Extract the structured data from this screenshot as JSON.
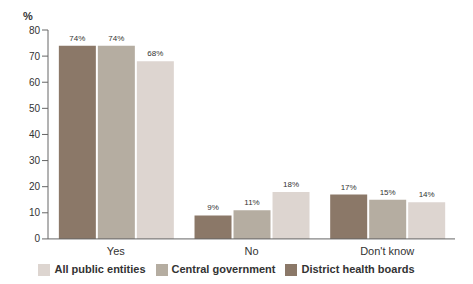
{
  "chart_data": {
    "type": "bar",
    "y_label": "%",
    "categories": [
      "Yes",
      "No",
      "Don't know"
    ],
    "series": [
      {
        "name": "District health boards",
        "color": "#8b7868",
        "values": [
          74,
          9,
          17
        ],
        "value_labels": [
          "74%",
          "9%",
          "17%"
        ]
      },
      {
        "name": "Central government",
        "color": "#b5ada1",
        "values": [
          74,
          11,
          15
        ],
        "value_labels": [
          "74%",
          "11%",
          "15%"
        ]
      },
      {
        "name": "All public entities",
        "color": "#ddd5d0",
        "values": [
          68,
          18,
          14
        ],
        "value_labels": [
          "68%",
          "18%",
          "14%"
        ]
      }
    ],
    "ylim": [
      0,
      80
    ],
    "yticks": [
      0,
      10,
      20,
      30,
      40,
      50,
      60,
      70,
      80
    ],
    "grid": false,
    "legend": "bottom",
    "data_labels": true
  }
}
